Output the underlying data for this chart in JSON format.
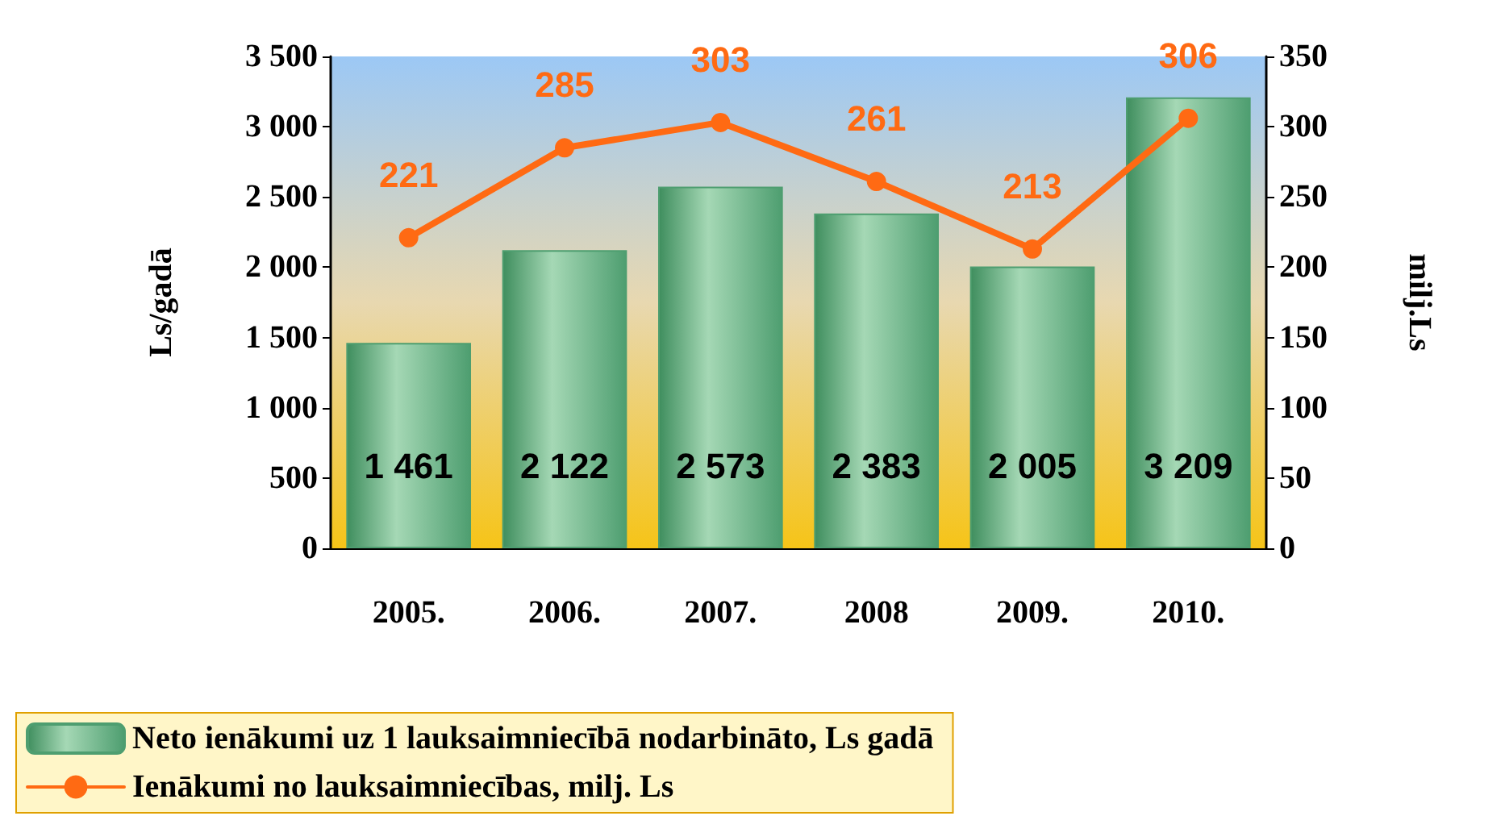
{
  "chart_data": {
    "type": "bar",
    "categories": [
      "2005.",
      "2006.",
      "2007.",
      "2008",
      "2009.",
      "2010."
    ],
    "ylabel": "Ls/gadā",
    "y2label": "milj.Ls",
    "ylim": [
      0,
      3500
    ],
    "yticks": [
      0,
      {
        "value": 500,
        "label": "500"
      },
      {
        "value": 1000,
        "label": "1 000"
      },
      {
        "value": 1500,
        "label": "1 500"
      },
      {
        "value": 2000,
        "label": "2 000"
      },
      {
        "value": 2500,
        "label": "2 500"
      },
      {
        "value": 3000,
        "label": "3 000"
      },
      {
        "value": 3500,
        "label": "3 500"
      }
    ],
    "y2lim": [
      0,
      350
    ],
    "y2ticks": [
      0,
      50,
      100,
      150,
      200,
      250,
      300,
      350
    ],
    "series": [
      {
        "name": "Neto ienākumi uz 1 lauksaimniecībā nodarbināto, Ls gadā",
        "color": "#4e9e70",
        "values": [
          1461,
          2122,
          2573,
          2383,
          2005,
          3209
        ],
        "value_labels": [
          "1 461",
          "2 122",
          "2 573",
          "2 383",
          "2 005",
          "3 209"
        ]
      },
      {
        "name": "Ienākumi no lauksaimniecības, milj. Ls",
        "type": "line",
        "axis": "y2",
        "color": "#ff6a13",
        "marker": "circle",
        "values": [
          221,
          285,
          303,
          261,
          213,
          306
        ],
        "value_labels": [
          "221",
          "285",
          "303",
          "261",
          "213",
          "306"
        ]
      }
    ],
    "legend": "bottom",
    "grid": false
  }
}
